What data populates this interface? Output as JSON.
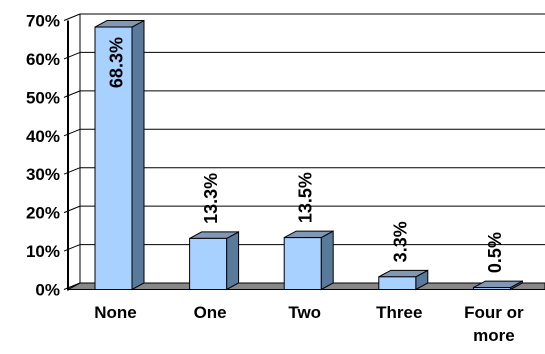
{
  "chart_data": {
    "type": "bar",
    "categories": [
      "None",
      "One",
      "Two",
      "Three",
      "Four or more"
    ],
    "category_lines": [
      [
        "None"
      ],
      [
        "One"
      ],
      [
        "Two"
      ],
      [
        "Three"
      ],
      [
        "Four or",
        "more"
      ]
    ],
    "values": [
      68.3,
      13.3,
      13.5,
      3.3,
      0.5
    ],
    "data_labels": [
      "68.3%",
      "13.3%",
      "13.5%",
      "3.3%",
      "0.5%"
    ],
    "yticks": [
      "0%",
      "10%",
      "20%",
      "30%",
      "40%",
      "50%",
      "60%",
      "70%"
    ],
    "ylim": [
      0,
      70
    ],
    "grid": true,
    "style": "3d-column",
    "colors": {
      "bar_front": "#a9d1ff",
      "bar_side": "#5a7a9c",
      "bar_top": "#8098b4",
      "floor": "#888888",
      "grid": "#000000"
    }
  }
}
